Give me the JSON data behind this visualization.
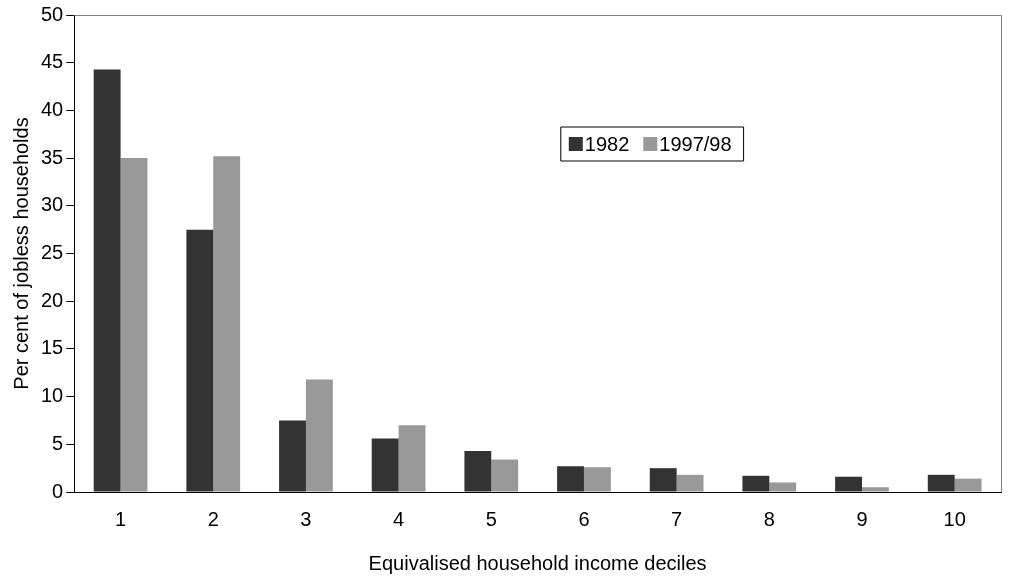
{
  "chart_data": {
    "type": "bar",
    "xlabel": "Equivalised household income deciles",
    "ylabel": "Per cent of jobless households",
    "categories": [
      "1",
      "2",
      "3",
      "4",
      "5",
      "6",
      "7",
      "8",
      "9",
      "10"
    ],
    "series": [
      {
        "name": "1982",
        "color": "#333333",
        "values": [
          44.3,
          27.5,
          7.5,
          5.6,
          4.3,
          2.7,
          2.5,
          1.7,
          1.6,
          1.8
        ]
      },
      {
        "name": "1997/98",
        "color": "#999999",
        "values": [
          35,
          35.2,
          11.8,
          7,
          3.4,
          2.6,
          1.8,
          1,
          0.5,
          1.4
        ]
      }
    ],
    "ylim": [
      0,
      50
    ],
    "yticks": [
      0,
      5,
      10,
      15,
      20,
      25,
      30,
      35,
      40,
      45,
      50
    ],
    "grid": false,
    "legend": "top right"
  }
}
